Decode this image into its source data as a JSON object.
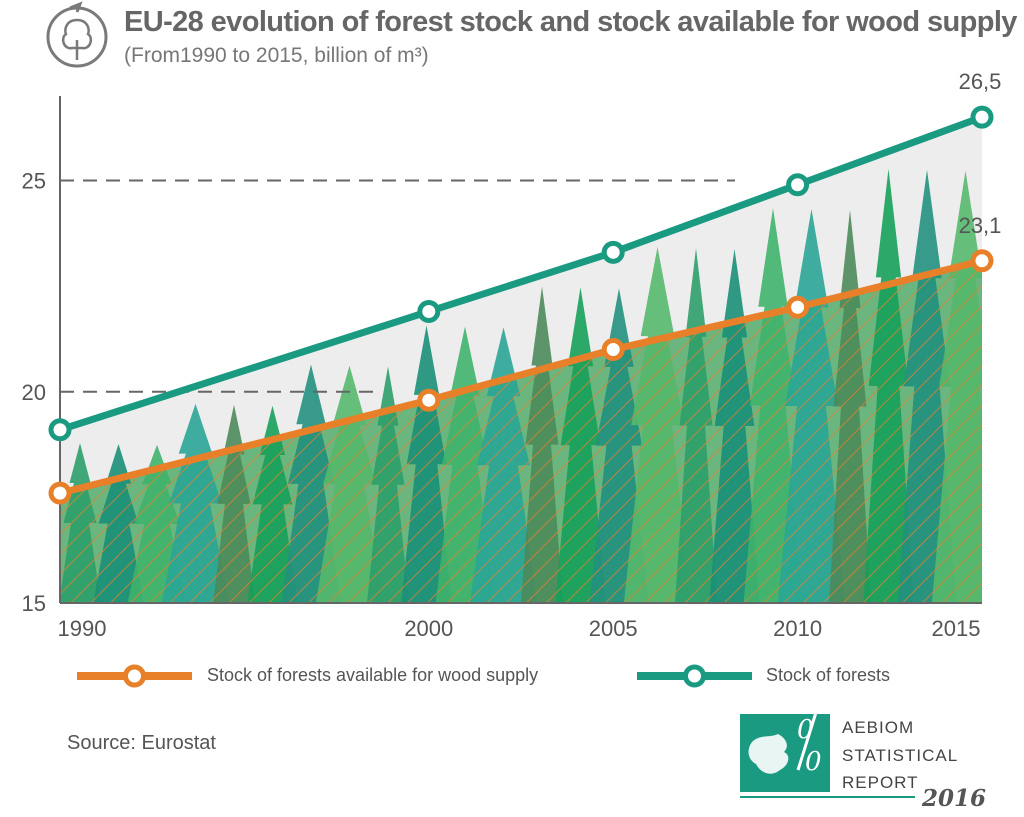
{
  "header": {
    "title": "EU-28 evolution of forest stock and stock available for wood supply",
    "subtitle": "(From1990 to 2015, billion of m³)",
    "tree_icon": "tree-icon"
  },
  "chart_data": {
    "type": "area",
    "x": [
      1990,
      2000,
      2005,
      2010,
      2015
    ],
    "x_tick_labels": [
      "1990",
      "2000",
      "2005",
      "2010",
      "2015"
    ],
    "y_ticks": [
      15,
      20,
      25
    ],
    "y_tick_labels": [
      "15",
      "20",
      "25"
    ],
    "ylim": [
      15,
      27
    ],
    "grid": "dashed lines at 20 and 25",
    "series": [
      {
        "name": "Stock of forests",
        "color": "#1a9a80",
        "values": [
          19.1,
          21.9,
          23.3,
          24.9,
          26.5
        ]
      },
      {
        "name": "Stock of forests available for wood supply",
        "color": "#e8802a",
        "values": [
          17.6,
          19.8,
          21.0,
          22.0,
          23.1
        ]
      }
    ],
    "data_labels": [
      {
        "series": "Stock of forests",
        "x": 2015,
        "text": "26,5"
      },
      {
        "series": "Stock of forests available for wood supply",
        "x": 2015,
        "text": "23,1"
      }
    ],
    "legend": {
      "placement": "bottom",
      "entries": [
        "Stock of forests available for wood supply",
        "Stock of forests"
      ]
    }
  },
  "source": "Source: Eurostat",
  "branding": {
    "line1": "AEBIOM",
    "line2": "STATISTICAL",
    "line3": "REPORT",
    "year": "2016",
    "logo_symbol": "0/0",
    "accent": "#1a9a80"
  }
}
